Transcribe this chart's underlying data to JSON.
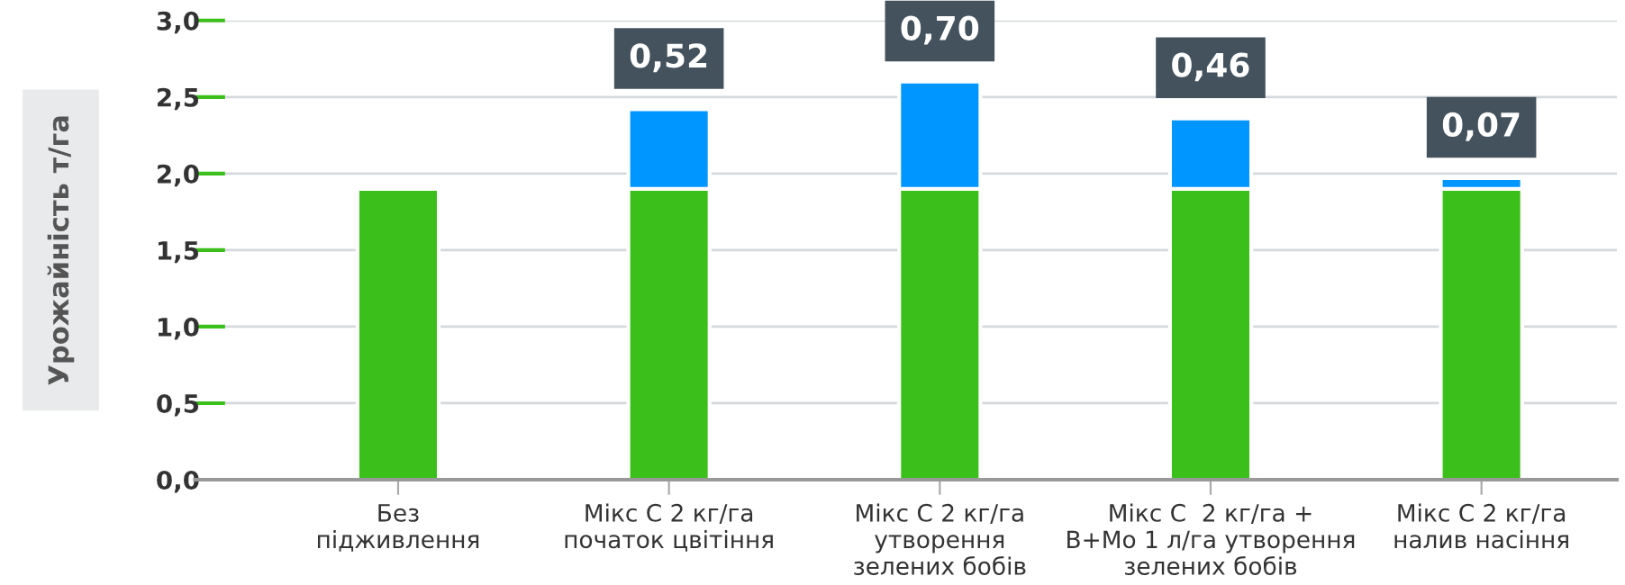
{
  "chart_data": {
    "type": "bar",
    "stacked": true,
    "ylabel": "Урожайність т/га",
    "categories": [
      "Без\nпідживлення",
      "Мікс С 2 кг/га\nпочаток цвітіння",
      "Мікс С 2 кг/га\nутворення\nзелених бобів",
      "Мікс С  2 кг/га +\nB+Mo 1 л/га утворення\nзелених бобів",
      "Мікс С 2 кг/га\nналив насіння"
    ],
    "series": [
      {
        "color": "#3bbf1a",
        "values": [
          1.9,
          1.9,
          1.9,
          1.9,
          1.9
        ]
      },
      {
        "color": "#0096ff",
        "values": [
          null,
          0.52,
          0.7,
          0.46,
          0.07
        ],
        "value_labels": [
          null,
          "0,52",
          "0,70",
          "0,46",
          "0,07"
        ]
      }
    ],
    "ylim": [
      0,
      3.0
    ],
    "yticks": [
      {
        "value": 0,
        "label": "0,0"
      },
      {
        "value": 0.5,
        "label": "0,5"
      },
      {
        "value": 1.0,
        "label": "1,0"
      },
      {
        "value": 1.5,
        "label": "1,5"
      },
      {
        "value": 2.0,
        "label": "2,0"
      },
      {
        "value": 2.5,
        "label": "2,5"
      },
      {
        "value": 3.0,
        "label": "3,0"
      }
    ],
    "grid": "y",
    "legend": false
  }
}
